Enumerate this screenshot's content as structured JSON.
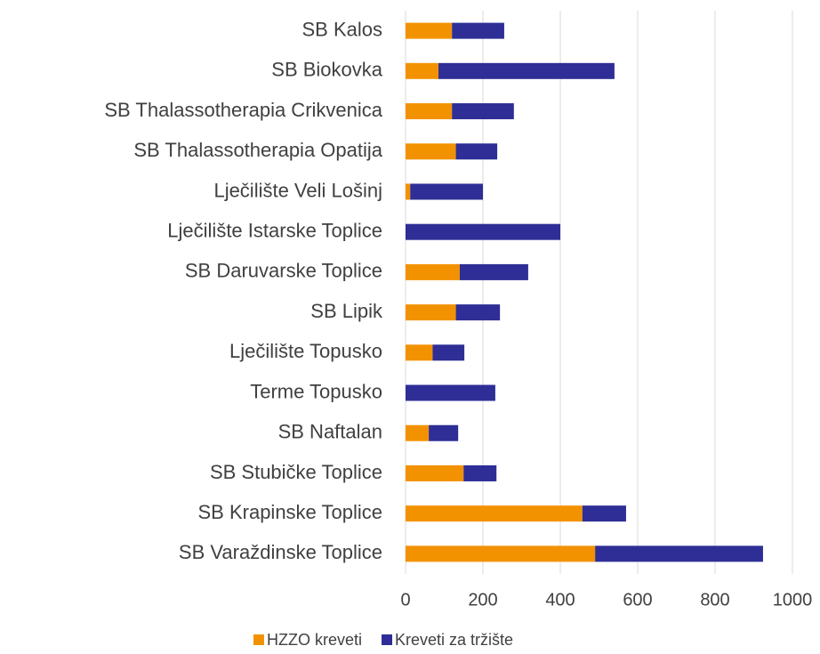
{
  "chart_data": {
    "type": "stacked_bar_horizontal",
    "categories": [
      "SB Kalos ",
      "SB Biokovka",
      "SB Thalassotherapia Crikvenica",
      "SB Thalassotherapia Opatija",
      "Lječilište Veli Lošinj",
      "Lječilište Istarske Toplice",
      "SB Daruvarske Toplice",
      "SB Lipik",
      "Lječilište Topusko ",
      "Terme Topusko",
      "SB Naftalan",
      "SB Stubičke Toplice",
      "SB Krapinske Toplice",
      "SB Varaždinske Toplice"
    ],
    "series": [
      {
        "name": "HZZO kreveti",
        "color": "#f39200",
        "values": [
          120,
          85,
          120,
          130,
          12,
          0,
          140,
          130,
          70,
          0,
          60,
          150,
          457,
          490
        ]
      },
      {
        "name": "Kreveti za tržište",
        "color": "#2e2e96",
        "values": [
          135,
          455,
          160,
          107,
          188,
          400,
          177,
          114,
          82,
          232,
          76,
          85,
          113,
          434
        ]
      }
    ],
    "xlim": [
      0,
      1000
    ],
    "xticks": [
      0,
      200,
      400,
      600,
      800,
      1000
    ],
    "grid": true,
    "legend": "bottom"
  }
}
